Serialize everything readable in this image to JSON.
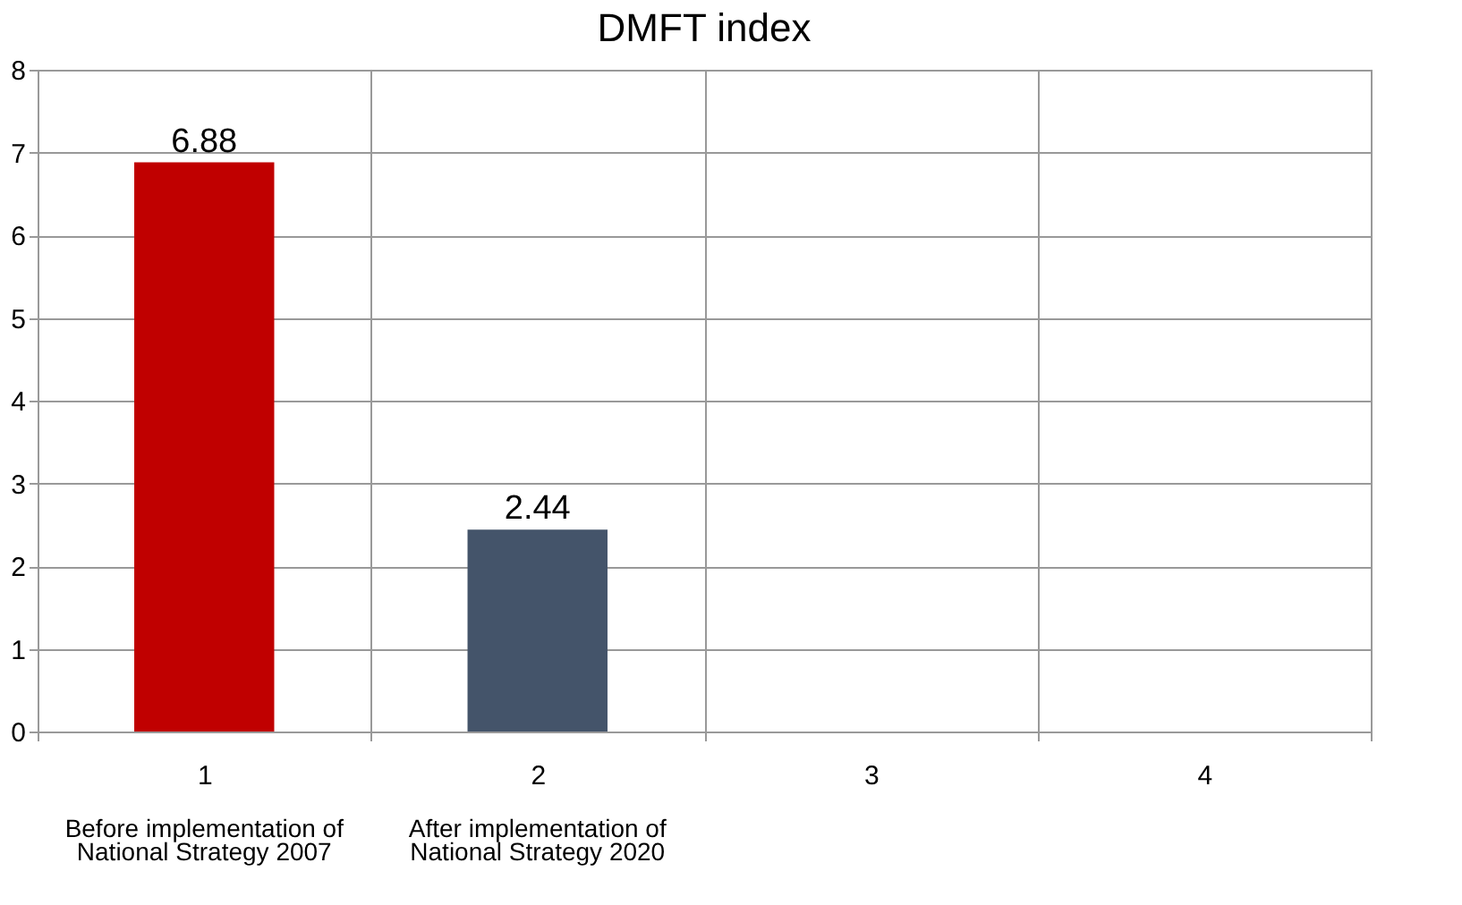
{
  "chart_data": {
    "type": "bar",
    "title": "DMFT index",
    "categories": [
      "1",
      "2",
      "3",
      "4"
    ],
    "values": [
      6.88,
      2.44,
      null,
      null
    ],
    "colors": [
      "#c00000",
      "#44546a",
      "#c00000",
      "#44546a"
    ],
    "ylim": [
      0,
      8
    ],
    "yticks": [
      0,
      1,
      2,
      3,
      4,
      5,
      6,
      7,
      8
    ],
    "grid": true,
    "data_labels": true,
    "annotations": [
      "Before implementation of\nNational  Strategy 2007",
      "After implementation of\nNational Strategy 2020"
    ]
  }
}
